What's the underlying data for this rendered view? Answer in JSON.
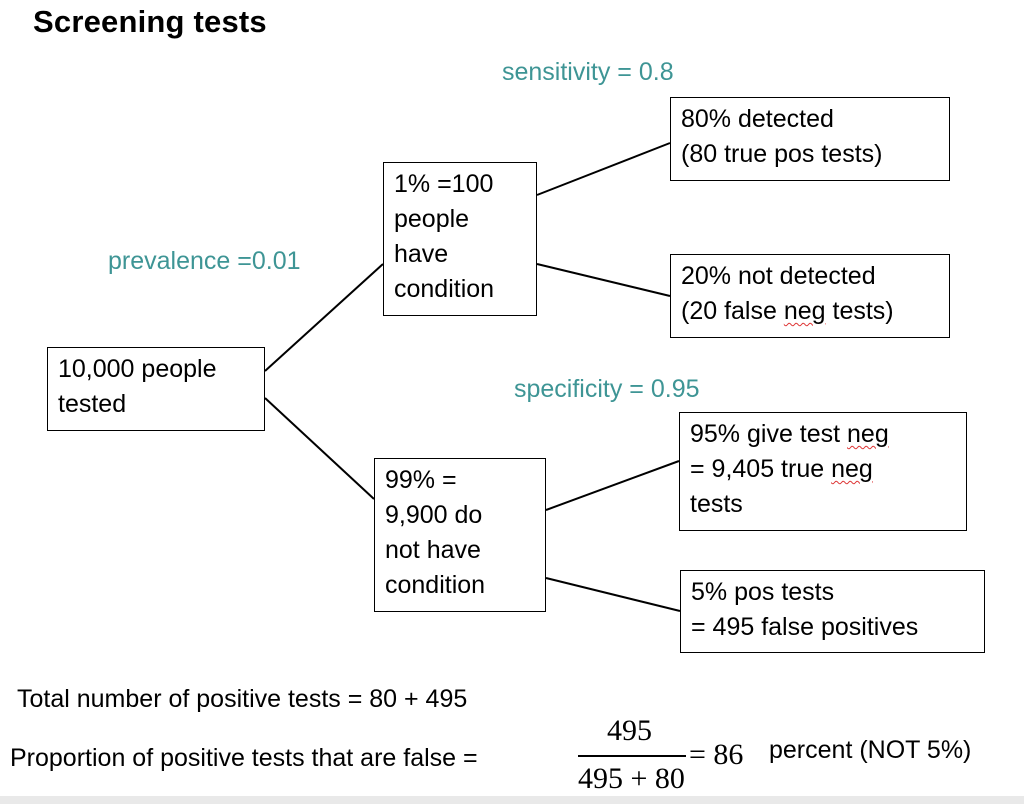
{
  "title": "Screening tests",
  "labels": {
    "prevalence": "prevalence =0.01",
    "sensitivity": "sensitivity = 0.8",
    "specificity": "specificity = 0.95"
  },
  "nodes": {
    "root": [
      "10,000 people",
      "tested"
    ],
    "has_condition": [
      "1% =100",
      "people",
      "have",
      "condition"
    ],
    "no_condition": [
      "99%  =",
      "9,900 do",
      "not have",
      "condition"
    ],
    "detected": [
      "80% detected",
      "(80 true pos tests)"
    ],
    "not_detected": {
      "line1": "20% not detected",
      "line2_pre": "(20 false ",
      "line2_word": "neg",
      "line2_post": " tests)"
    },
    "true_neg": {
      "line1_pre": "95% give test ",
      "line1_word": "neg",
      "line2_pre": "= 9,405 true ",
      "line2_word": "neg",
      "line3": "tests"
    },
    "false_pos": [
      "5%  pos tests",
      "= 495 false positives"
    ]
  },
  "summary": {
    "total_positive": "Total number of positive tests = 80 + 495",
    "proportion_label": "Proportion of positive tests that are false =",
    "fraction_numerator": "495",
    "fraction_denominator": "495 + 80",
    "equals_value": "= 86",
    "suffix": "percent (NOT 5%)"
  }
}
